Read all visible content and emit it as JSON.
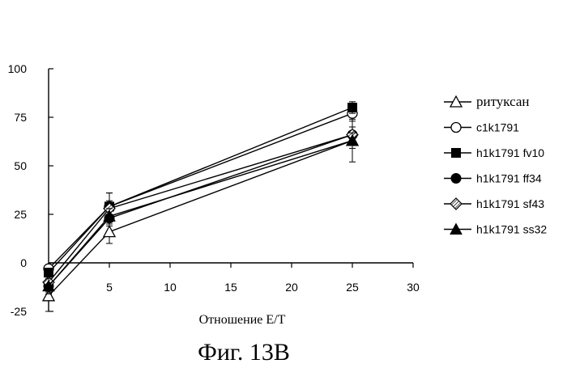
{
  "chart_data": {
    "type": "line",
    "xlabel": "Отношение E/T",
    "ylabel": "",
    "caption": "Фиг. 13B",
    "xlim": [
      0,
      30
    ],
    "ylim": [
      -25,
      100
    ],
    "x_ticks": [
      5,
      10,
      15,
      20,
      25,
      30
    ],
    "y_ticks": [
      -25,
      0,
      25,
      50,
      75,
      100
    ],
    "grid": false,
    "legend_position": "right",
    "x": [
      0,
      5,
      25
    ],
    "series": [
      {
        "name": "ритуксан",
        "marker": "triangle-open",
        "values": [
          -17,
          16,
          63
        ],
        "err": [
          8,
          6,
          11
        ]
      },
      {
        "name": "c1k1791",
        "marker": "circle-open",
        "values": [
          -3,
          29,
          77
        ],
        "err": [
          2,
          7,
          4
        ]
      },
      {
        "name": "h1k1791 fv10",
        "marker": "square-filled",
        "values": [
          -5,
          29,
          80
        ],
        "err": [
          2,
          7,
          3
        ]
      },
      {
        "name": "h1k1791 ff34",
        "marker": "circle-filled",
        "values": [
          -12,
          23,
          66
        ],
        "err": [
          3,
          4,
          4
        ]
      },
      {
        "name": "h1k1791 sf43",
        "marker": "diamond-hatched",
        "values": [
          -10,
          28,
          66
        ],
        "err": [
          3,
          4,
          4
        ]
      },
      {
        "name": "h1k1791 ss32",
        "marker": "triangle-filled",
        "values": [
          -12,
          24,
          63
        ],
        "err": [
          4,
          4,
          4
        ]
      }
    ]
  }
}
